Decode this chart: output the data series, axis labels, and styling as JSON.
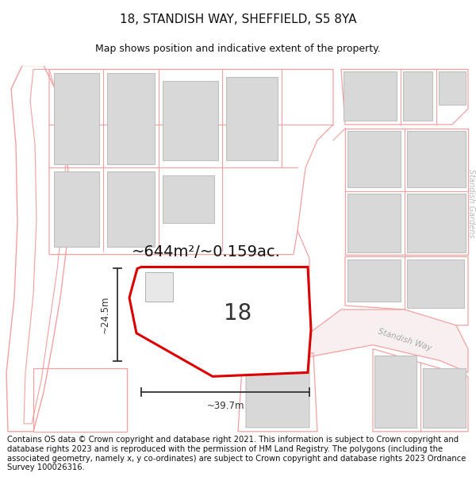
{
  "title": "18, STANDISH WAY, SHEFFIELD, S5 8YA",
  "subtitle": "Map shows position and indicative extent of the property.",
  "footer": "Contains OS data © Crown copyright and database right 2021. This information is subject to Crown copyright and database rights 2023 and is reproduced with the permission of HM Land Registry. The polygons (including the associated geometry, namely x, y co-ordinates) are subject to Crown copyright and database rights 2023 Ordnance Survey 100026316.",
  "area_label": "~644m²/~0.159ac.",
  "number_label": "18",
  "dim_width": "~39.7m",
  "dim_height": "~24.5m",
  "road_label_1": "Standish Way",
  "road_label_2": "Standish Gardens",
  "bg_color": "#ffffff",
  "map_bg": "#ffffff",
  "plot_edge_color": "#dd0000",
  "road_line_color": "#f5a0a0",
  "building_fill": "#d8d8d8",
  "building_edge": "#c0c0c0",
  "dim_color": "#333333",
  "title_fontsize": 11,
  "subtitle_fontsize": 9,
  "footer_fontsize": 7.2,
  "area_fontsize": 14,
  "number_fontsize": 20,
  "road_text_color": "#aaaaaa",
  "road_text_size": 7.5
}
